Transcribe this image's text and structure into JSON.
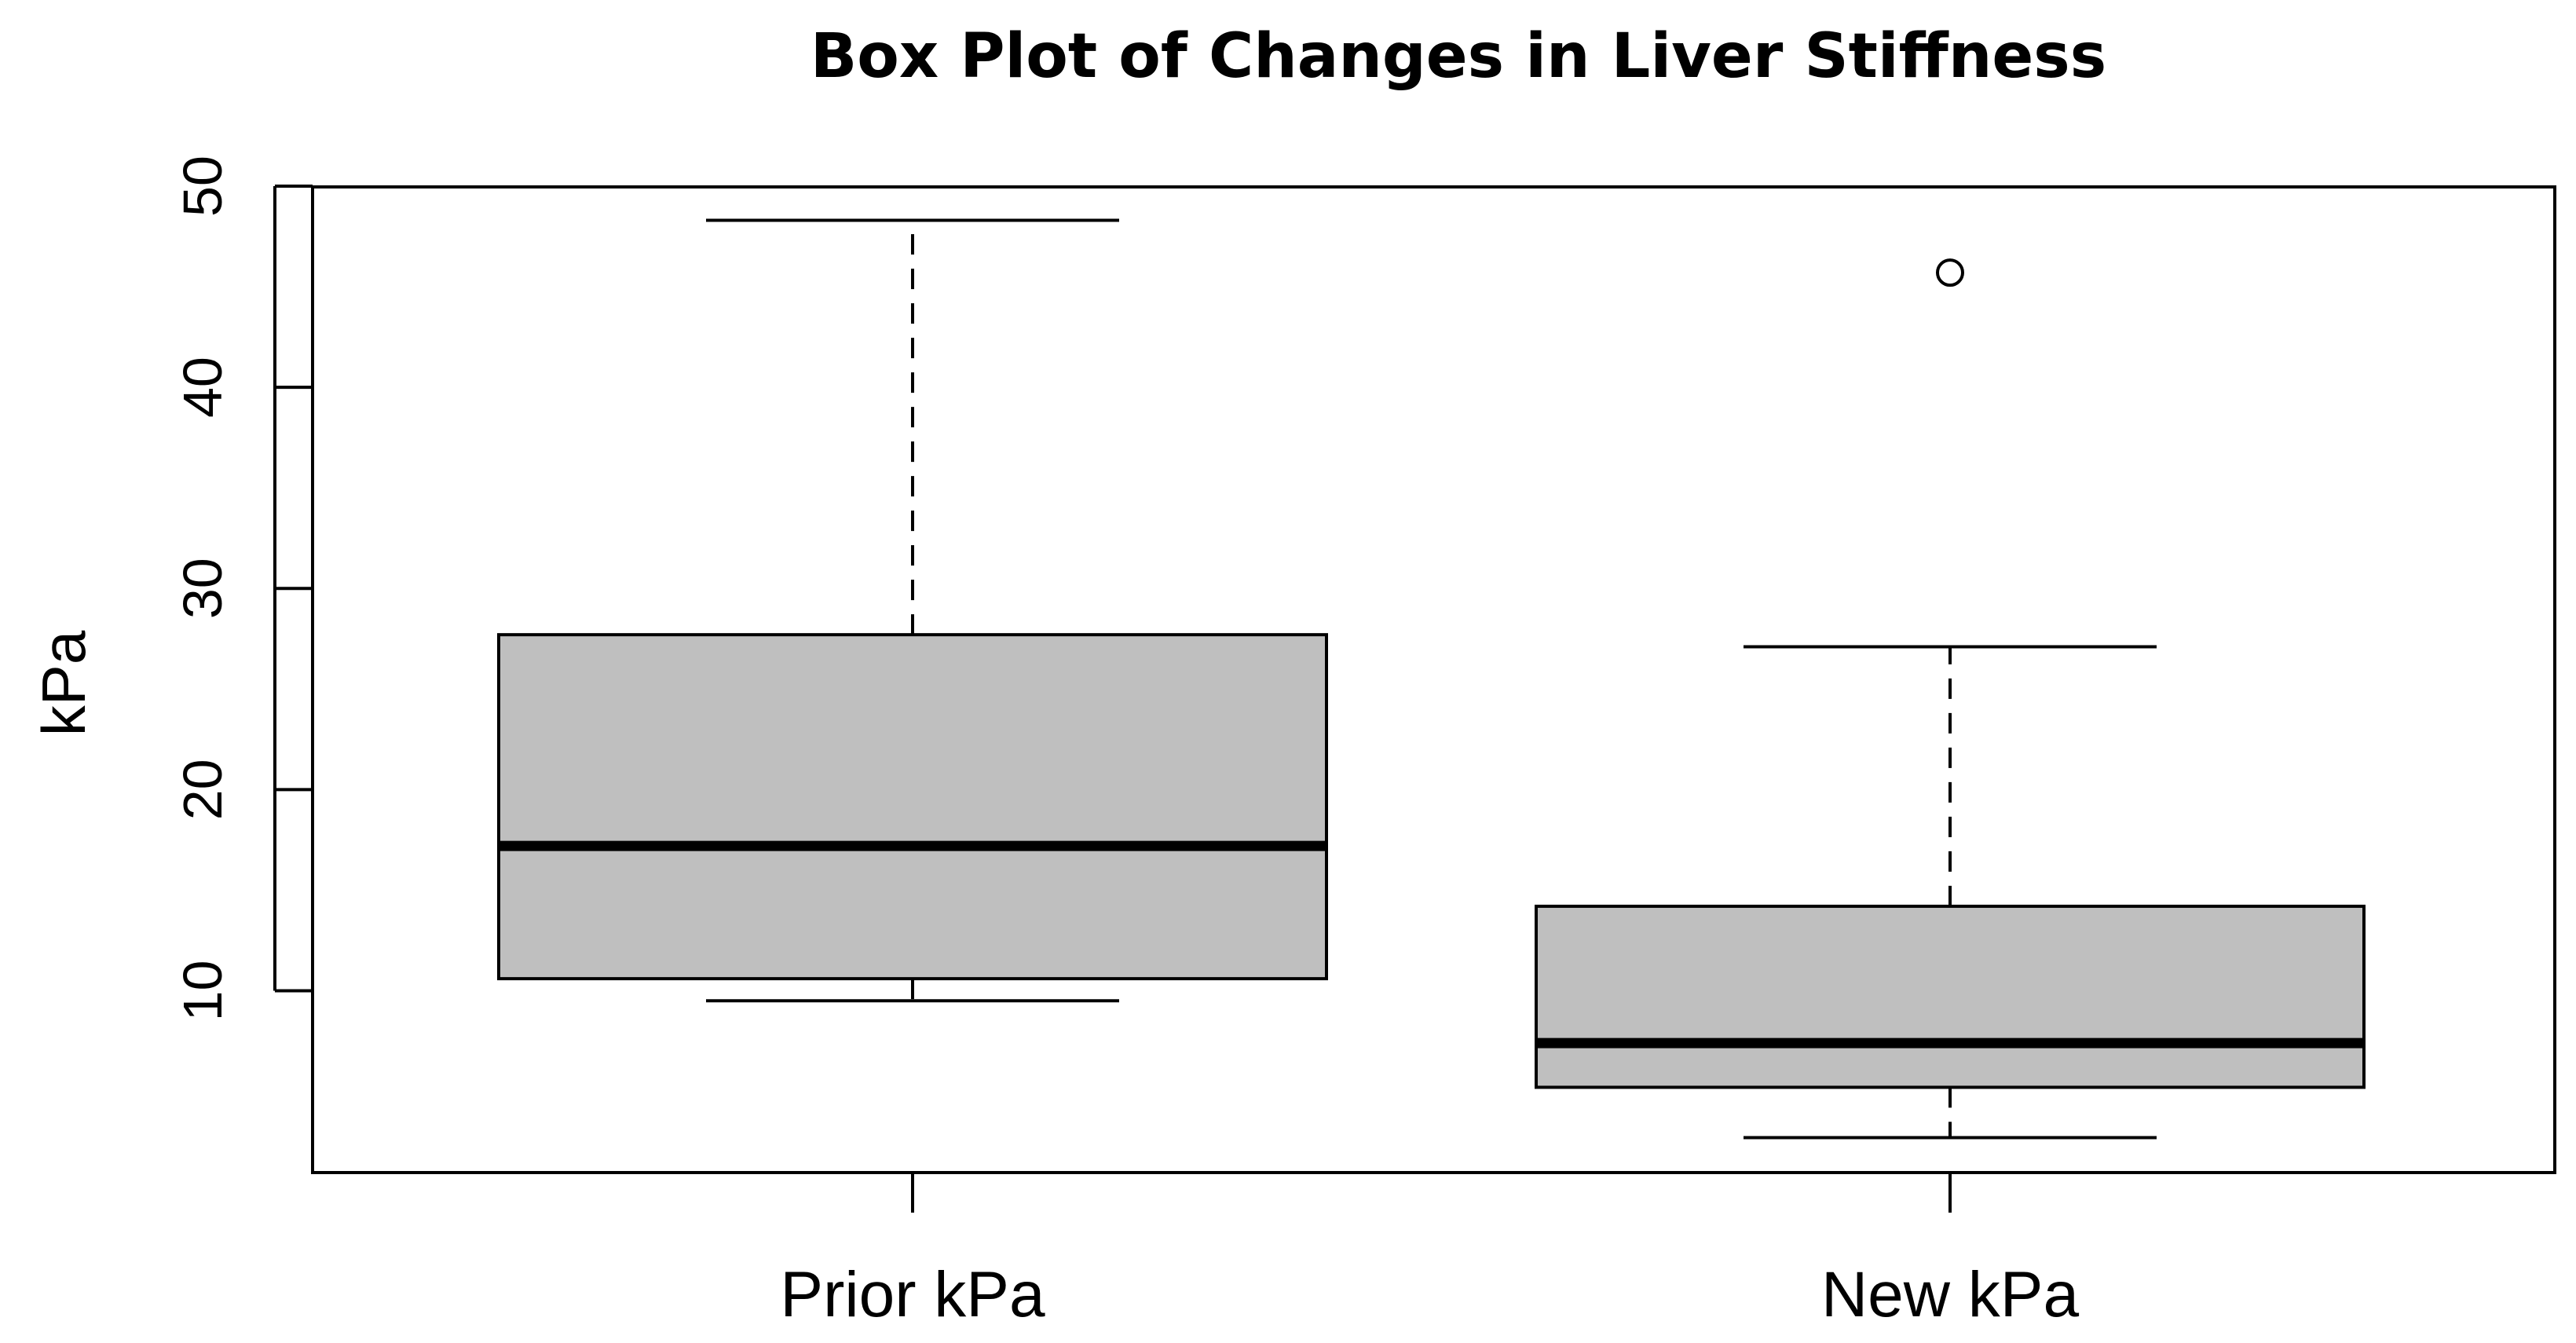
{
  "chart_data": {
    "type": "box",
    "title": "Box Plot of Changes in Liver Stiffness",
    "xlabel": "",
    "ylabel": "kPa",
    "ylim": [
      1,
      50
    ],
    "yticks": [
      10,
      20,
      30,
      40,
      50
    ],
    "grid": false,
    "categories": [
      "Prior kPa",
      "New kPa"
    ],
    "boxes": [
      {
        "category": "Prior kPa",
        "whisker_low": 9.5,
        "q1": 10.6,
        "median": 17.2,
        "q3": 27.7,
        "whisker_high": 48.3,
        "outliers": []
      },
      {
        "category": "New kPa",
        "whisker_low": 2.7,
        "q1": 5.2,
        "median": 7.4,
        "q3": 14.2,
        "whisker_high": 27.1,
        "outliers": [
          45.7
        ]
      }
    ],
    "colors": {
      "box_fill": "#bfbfbf",
      "line": "#000000"
    }
  }
}
